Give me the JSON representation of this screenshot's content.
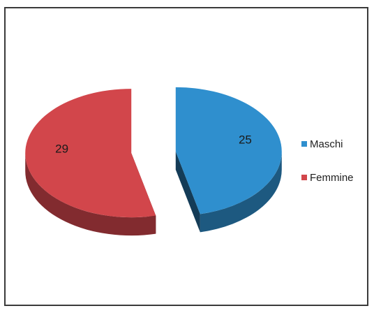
{
  "chart_data": {
    "type": "pie",
    "style": "3d-exploded",
    "categories": [
      "Maschi",
      "Femmine"
    ],
    "values": [
      25,
      29
    ],
    "data_labels": [
      "25",
      "29"
    ],
    "title": "",
    "legend_position": "right",
    "colors": {
      "Maschi": "#2f8fce",
      "Femmine": "#d2464b"
    }
  }
}
